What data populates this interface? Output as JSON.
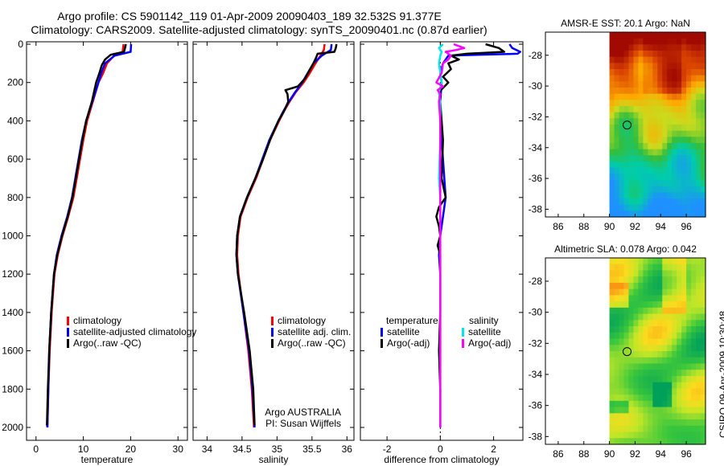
{
  "header": {
    "line1": "Argo profile: CS 5901142_119 01-Apr-2009 20090403_189 32.532S 91.377E",
    "line2": "Climatology: CARS2009. Satellite-adjusted climatology: synTS_20090401.nc (0.87d earlier)"
  },
  "side_label": "CSIRO 09-Apr-2009 10:30:48",
  "chart_data": [
    {
      "id": "temperature",
      "type": "line",
      "xlabel": "temperature",
      "ylabel": "depth",
      "xlim": [
        -2,
        32
      ],
      "ylim": [
        0,
        2050
      ],
      "xticks": [
        0,
        10,
        20,
        30
      ],
      "yticks": [
        0,
        200,
        400,
        600,
        800,
        1000,
        1200,
        1400,
        1600,
        1800,
        2000
      ],
      "legend": [
        "climatology",
        "satellite-adjusted climatology",
        "Argo(..raw -QC)"
      ],
      "series": [
        {
          "name": "climatology",
          "color": "#ff0000",
          "depth": [
            0,
            40,
            60,
            100,
            150,
            200,
            300,
            400,
            500,
            600,
            700,
            800,
            900,
            1000,
            1100,
            1200,
            1400,
            1600,
            1800,
            2000
          ],
          "values": [
            18.5,
            18.3,
            16.5,
            15.0,
            14.2,
            13.2,
            12.0,
            10.8,
            10.0,
            9.3,
            8.6,
            7.9,
            6.8,
            5.6,
            4.6,
            3.9,
            3.3,
            2.9,
            2.6,
            2.4
          ]
        },
        {
          "name": "satellite-adjusted climatology",
          "color": "#0000ff",
          "depth": [
            0,
            40,
            60,
            100,
            150,
            200,
            300,
            400,
            500,
            600,
            700,
            800,
            900,
            1000,
            1100,
            1200,
            1400,
            1600,
            1800,
            2000
          ],
          "values": [
            20.1,
            20.0,
            16.6,
            14.6,
            13.8,
            13.2,
            11.9,
            10.6,
            9.7,
            9.0,
            8.3,
            7.6,
            6.6,
            5.4,
            4.4,
            3.8,
            3.2,
            2.8,
            2.6,
            2.4
          ]
        },
        {
          "name": "Argo(..raw -QC)",
          "color": "#000000",
          "depth": [
            0,
            20,
            40,
            55,
            80,
            110,
            150,
            200,
            300,
            400,
            500,
            600,
            700,
            800,
            900,
            1000,
            1100,
            1200,
            1400,
            1600,
            1800,
            1990
          ],
          "values": [
            19.0,
            18.8,
            18.6,
            15.8,
            14.6,
            13.9,
            13.4,
            12.7,
            11.8,
            10.6,
            9.8,
            9.1,
            8.4,
            7.7,
            6.7,
            5.5,
            4.5,
            3.8,
            3.2,
            2.8,
            2.5,
            2.3
          ]
        }
      ]
    },
    {
      "id": "salinity",
      "type": "line",
      "xlabel": "salinity",
      "ylabel": "depth",
      "xlim": [
        33.8,
        36.1
      ],
      "ylim": [
        0,
        2050
      ],
      "xticks": [
        34,
        34.5,
        35,
        35.5,
        36
      ],
      "legend": [
        "climatology",
        "satellite adj. clim.",
        "Argo(..raw -QC)"
      ],
      "annotations": [
        "Argo AUSTRALIA",
        "PI: Susan Wijffels"
      ],
      "series": [
        {
          "name": "climatology",
          "color": "#ff0000",
          "depth": [
            0,
            30,
            60,
            100,
            150,
            200,
            250,
            300,
            350,
            400,
            500,
            600,
            700,
            800,
            900,
            1000,
            1100,
            1200,
            1400,
            1600,
            1800,
            2000
          ],
          "values": [
            35.68,
            35.67,
            35.62,
            35.55,
            35.47,
            35.38,
            35.27,
            35.18,
            35.1,
            35.03,
            34.9,
            34.8,
            34.7,
            34.58,
            34.48,
            34.44,
            34.43,
            34.45,
            34.52,
            34.59,
            34.64,
            34.67
          ]
        },
        {
          "name": "satellite adj. clim.",
          "color": "#0000ff",
          "depth": [
            0,
            30,
            60,
            100,
            150,
            200,
            250,
            300,
            350,
            400,
            500,
            600,
            700,
            800,
            900,
            1000,
            1100,
            1200,
            1400,
            1600,
            1800,
            2000
          ],
          "values": [
            35.78,
            35.77,
            35.64,
            35.52,
            35.44,
            35.36,
            35.26,
            35.17,
            35.09,
            35.02,
            34.89,
            34.79,
            34.69,
            34.57,
            34.47,
            34.43,
            34.42,
            34.44,
            34.52,
            34.6,
            34.65,
            34.68
          ]
        },
        {
          "name": "Argo(..raw -QC)",
          "color": "#000000",
          "depth": [
            0,
            20,
            40,
            50,
            70,
            100,
            140,
            180,
            220,
            240,
            260,
            300,
            350,
            400,
            500,
            600,
            700,
            800,
            900,
            1000,
            1100,
            1200,
            1400,
            1600,
            1800,
            1990
          ],
          "values": [
            35.85,
            35.84,
            35.82,
            35.58,
            35.56,
            35.52,
            35.46,
            35.4,
            35.3,
            35.12,
            35.15,
            35.16,
            35.1,
            35.02,
            34.9,
            34.8,
            34.69,
            34.57,
            34.47,
            34.43,
            34.42,
            34.44,
            34.53,
            34.61,
            34.66,
            34.68
          ]
        }
      ]
    },
    {
      "id": "difference",
      "type": "line",
      "xlabel": "difference from climatology",
      "ylabel": "depth",
      "xlim": [
        -3,
        3.1
      ],
      "ylim": [
        0,
        2050
      ],
      "xticks": [
        -2,
        0,
        2
      ],
      "legend_title_left": "temperature",
      "legend_title_right": "salinity",
      "legend_left": [
        "satellite",
        "Argo(-adj)"
      ],
      "legend_right": [
        "satellite",
        "Argo(-adj)"
      ],
      "series": [
        {
          "name": "temperature satellite",
          "color": "#0000ff",
          "depth": [
            0,
            20,
            40,
            50,
            55,
            60,
            80,
            100,
            150,
            200,
            300,
            400,
            600,
            800,
            900,
            1000,
            1100,
            1200,
            1400,
            1600,
            1800,
            2000
          ],
          "values": [
            2.6,
            2.7,
            3.0,
            2.9,
            1.5,
            0.3,
            0.2,
            0.1,
            0.0,
            0.05,
            0.0,
            0.0,
            0.1,
            0.2,
            0.1,
            0.0,
            -0.05,
            0.0,
            0.0,
            0.0,
            0.0,
            0.0
          ]
        },
        {
          "name": "temperature Argo(-adj)",
          "color": "#000000",
          "depth": [
            0,
            20,
            40,
            50,
            60,
            80,
            100,
            130,
            170,
            200,
            250,
            300,
            400,
            500,
            700,
            800,
            850,
            900,
            950,
            1000,
            1050,
            1100,
            1200,
            1400,
            1600,
            1800,
            2000
          ],
          "values": [
            1.7,
            2.2,
            2.4,
            1.0,
            0.4,
            0.7,
            0.3,
            0.4,
            0.1,
            0.3,
            -0.05,
            0.0,
            0.05,
            0.1,
            0.05,
            0.2,
            -0.05,
            -0.15,
            -0.05,
            0.0,
            -0.1,
            0.0,
            0.0,
            0.0,
            -0.05,
            0.0,
            0.0
          ]
        },
        {
          "name": "salinity satellite",
          "color": "#00e5ee",
          "depth": [
            0,
            20,
            40,
            60,
            100,
            150,
            200,
            250,
            300,
            400,
            500,
            700,
            800,
            1000,
            1200,
            1400,
            1600,
            1800,
            2000
          ],
          "values": [
            0.1,
            -0.05,
            0.05,
            0.0,
            -0.05,
            0.0,
            0.05,
            -0.05,
            0.0,
            0.0,
            0.0,
            -0.05,
            0.0,
            0.0,
            0.0,
            0.0,
            0.0,
            0.0,
            0.0
          ]
        },
        {
          "name": "salinity Argo(-adj)",
          "color": "#ff00ff",
          "depth": [
            0,
            20,
            30,
            40,
            60,
            80,
            100,
            150,
            200,
            220,
            240,
            260,
            300,
            400,
            500,
            700,
            900,
            1100,
            1400,
            1600,
            1800,
            2000
          ],
          "values": [
            0.5,
            0.9,
            0.6,
            0.2,
            0.4,
            0.3,
            0.1,
            0.05,
            -0.15,
            0.1,
            -0.1,
            0.0,
            -0.05,
            0.0,
            0.0,
            0.0,
            0.0,
            0.0,
            0.0,
            0.0,
            0.0,
            0.0
          ]
        }
      ]
    },
    {
      "id": "sst-map",
      "type": "heatmap",
      "title": "AMSR-E SST: 20.1 Argo: NaN",
      "xlim": [
        85,
        97.5
      ],
      "ylim": [
        -38.5,
        -26.5
      ],
      "xticks": [
        86,
        88,
        90,
        92,
        94,
        96
      ],
      "yticks": [
        -28,
        -30,
        -32,
        -34,
        -36,
        -38
      ],
      "data_xrange": [
        90,
        97.5
      ],
      "marker": {
        "lon": 91.377,
        "lat": -32.532
      }
    },
    {
      "id": "sla-map",
      "type": "heatmap",
      "title": "Altimetric SLA: 0.078 Argo: 0.042",
      "xlim": [
        85,
        97.5
      ],
      "ylim": [
        -38.5,
        -26.5
      ],
      "xticks": [
        86,
        88,
        90,
        92,
        94,
        96
      ],
      "yticks": [
        -28,
        -30,
        -32,
        -34,
        -36,
        -38
      ],
      "data_xrange": [
        90,
        97.5
      ],
      "marker": {
        "lon": 91.377,
        "lat": -32.532
      }
    }
  ]
}
